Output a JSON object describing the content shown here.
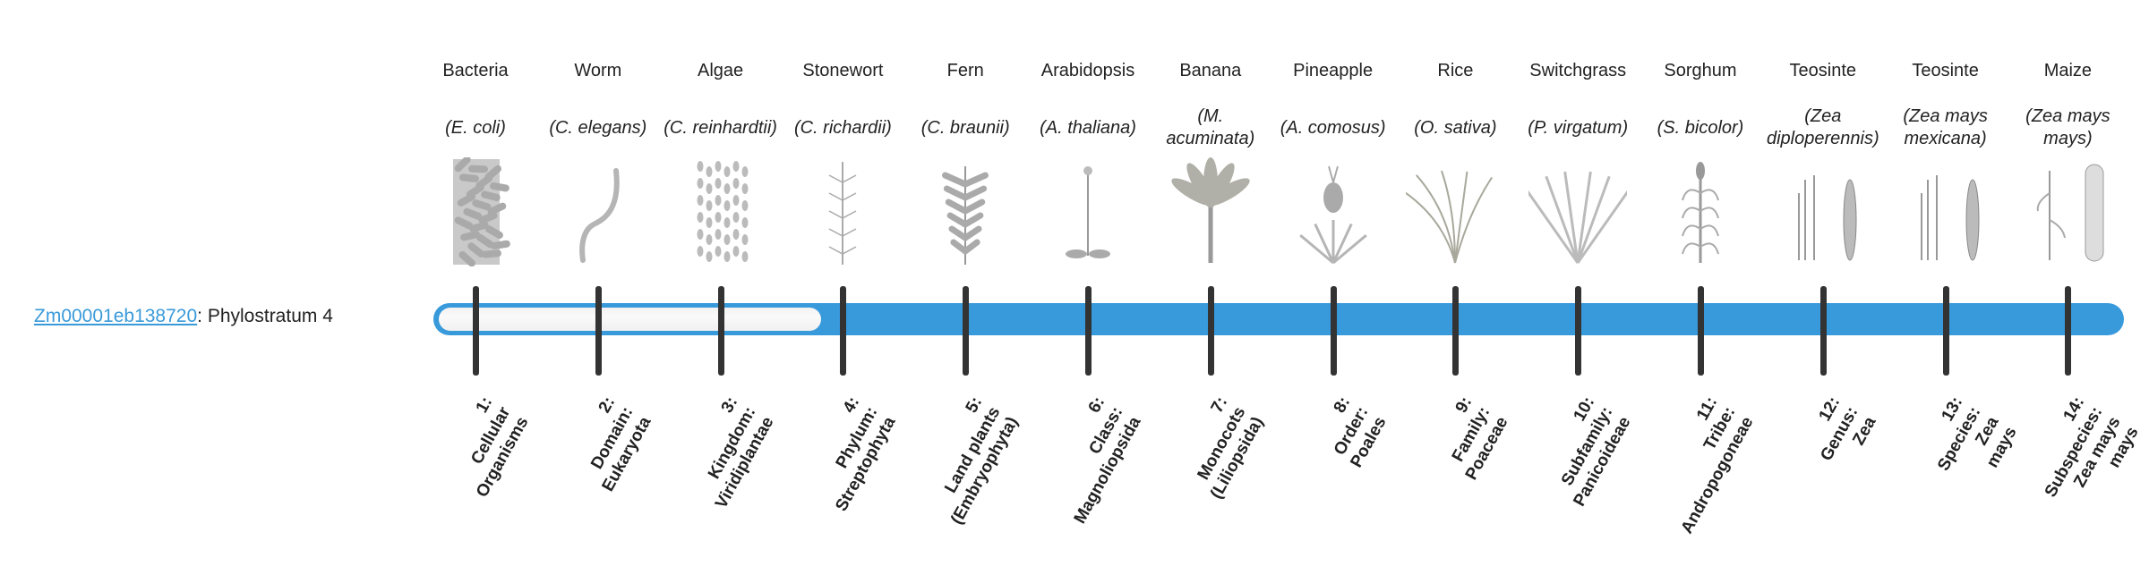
{
  "gene": {
    "id": "Zm00001eb138720",
    "suffix": ": Phylostratum 4"
  },
  "phylostratum": 4,
  "colors": {
    "bar": "#3899db",
    "track": "#f5f5f5",
    "tick": "#333333",
    "link": "#3a9ad9"
  },
  "organisms": [
    {
      "common": "Bacteria",
      "scientific": "(E. coli)",
      "icon": "bacteria-illustration"
    },
    {
      "common": "Worm",
      "scientific": "(C. elegans)",
      "icon": "worm-illustration"
    },
    {
      "common": "Algae",
      "scientific": "(C. reinhardtii)",
      "icon": "algae-illustration"
    },
    {
      "common": "Stonewort",
      "scientific": "(C. richardii)",
      "icon": "stonewort-illustration"
    },
    {
      "common": "Fern",
      "scientific": "(C. braunii)",
      "icon": "fern-illustration"
    },
    {
      "common": "Arabidopsis",
      "scientific": "(A. thaliana)",
      "icon": "arabidopsis-illustration"
    },
    {
      "common": "Banana",
      "scientific": "(M. acuminata)",
      "icon": "banana-illustration"
    },
    {
      "common": "Pineapple",
      "scientific": "(A. comosus)",
      "icon": "pineapple-illustration"
    },
    {
      "common": "Rice",
      "scientific": "(O. sativa)",
      "icon": "rice-illustration"
    },
    {
      "common": "Switchgrass",
      "scientific": "(P. virgatum)",
      "icon": "switchgrass-illustration"
    },
    {
      "common": "Sorghum",
      "scientific": "(S. bicolor)",
      "icon": "sorghum-illustration"
    },
    {
      "common": "Teosinte",
      "scientific": "(Zea diploperennis)",
      "icon": "teosinte-illustration"
    },
    {
      "common": "Teosinte",
      "scientific": "(Zea mays mexicana)",
      "icon": "teosinte-illustration"
    },
    {
      "common": "Maize",
      "scientific": "(Zea mays mays)",
      "icon": "maize-illustration"
    }
  ],
  "levels": [
    [
      "1:",
      "Cellular",
      "Organisms"
    ],
    [
      "2:",
      "Domain:",
      "Eukaryota"
    ],
    [
      "3:",
      "Kingdom:",
      "Viridiplantae"
    ],
    [
      "4:",
      "Phylum:",
      "Streptophyta"
    ],
    [
      "5:",
      "Land plants",
      "(Embryophyta)"
    ],
    [
      "6:",
      "Class:",
      "Magnoliopsida"
    ],
    [
      "7:",
      "Monocots",
      "(Liliopsida)"
    ],
    [
      "8:",
      "Order:",
      "Poales"
    ],
    [
      "9:",
      "Family:",
      "Poaceae"
    ],
    [
      "10:",
      "Subfamily:",
      "Panicoideae"
    ],
    [
      "11:",
      "Tribe:",
      "Andropogoneae"
    ],
    [
      "12:",
      "Genus:",
      "Zea"
    ],
    [
      "13:",
      "Species:",
      "Zea",
      "mays"
    ],
    [
      "14:",
      "Subspecies:",
      "Zea mays",
      "mays"
    ]
  ]
}
